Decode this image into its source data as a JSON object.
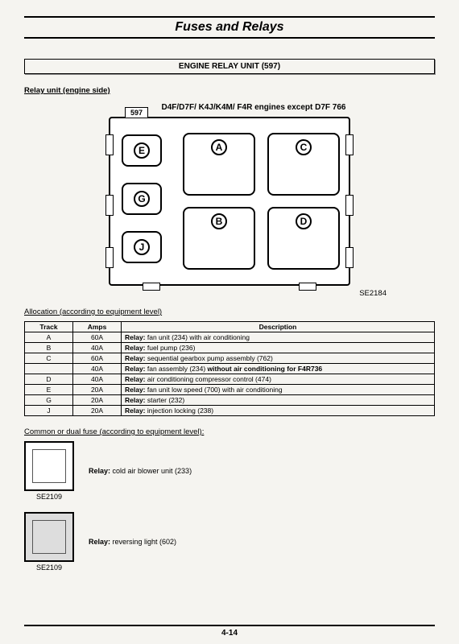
{
  "page": {
    "title": "Fuses and Relays",
    "section_banner": "ENGINE RELAY UNIT (597)",
    "sub_heading": "Relay unit (engine side)",
    "number": "4-14"
  },
  "diagram": {
    "caption": "D4F/D7F/ K4J/K4M/ F4R engines except D7F 766",
    "tag": "597",
    "fig_ref": "SE2184",
    "slots": {
      "E": "E",
      "G": "G",
      "J": "J",
      "A": "A",
      "B": "B",
      "C": "C",
      "D": "D"
    }
  },
  "allocation": {
    "heading": "Allocation (according to equipment level)",
    "cols": {
      "track": "Track",
      "amps": "Amps",
      "desc": "Description"
    },
    "rows": [
      {
        "track": "A",
        "amps": "60A",
        "b": "Relay:",
        "t": " fan unit (234) with air conditioning"
      },
      {
        "track": "B",
        "amps": "40A",
        "b": "Relay:",
        "t": " fuel pump (236)"
      },
      {
        "track": "C",
        "amps": "60A",
        "b": "Relay:",
        "t": " sequential gearbox pump assembly (762)"
      },
      {
        "track": "",
        "amps": "40A",
        "b": "Relay:",
        "t": " fan assembly (234) without air conditioning for F4R736",
        "bold2": "without air conditioning for F4R736"
      },
      {
        "track": "D",
        "amps": "40A",
        "b": "Relay:",
        "t": " air conditioning compressor control (474)"
      },
      {
        "track": "E",
        "amps": "20A",
        "b": "Relay:",
        "t": " fan unit low speed (700) with air conditioning"
      },
      {
        "track": "G",
        "amps": "20A",
        "b": "Relay:",
        "t": " starter (232)"
      },
      {
        "track": "J",
        "amps": "20A",
        "b": "Relay:",
        "t": " injection locking (238)"
      }
    ]
  },
  "common": {
    "heading": "Common or dual fuse (according to equipment level):",
    "items": [
      {
        "se": "SE2109",
        "b": "Relay:",
        "t": " cold air blower unit (233)"
      },
      {
        "se": "SE2109",
        "b": "Relay:",
        "t": " reversing light (602)"
      }
    ]
  }
}
